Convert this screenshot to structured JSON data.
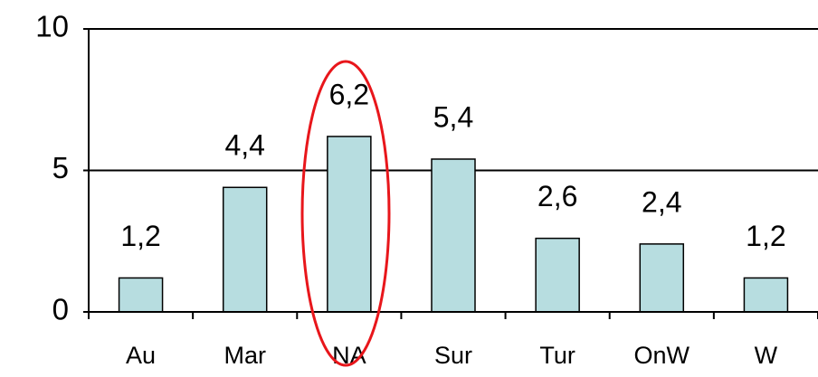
{
  "chart_data": {
    "type": "bar",
    "categories": [
      "Au",
      "Mar",
      "NA",
      "Sur",
      "Tur",
      "OnW",
      "W"
    ],
    "values": [
      1.2,
      4.4,
      6.2,
      5.4,
      2.6,
      2.4,
      1.2
    ],
    "value_labels": [
      "1,2",
      "4,4",
      "6,2",
      "5,4",
      "2,6",
      "2,4",
      "1,2"
    ],
    "color": "#b7dde0",
    "ylim": [
      0,
      10
    ],
    "yticks": [
      0,
      5,
      10
    ],
    "grid": true
  }
}
